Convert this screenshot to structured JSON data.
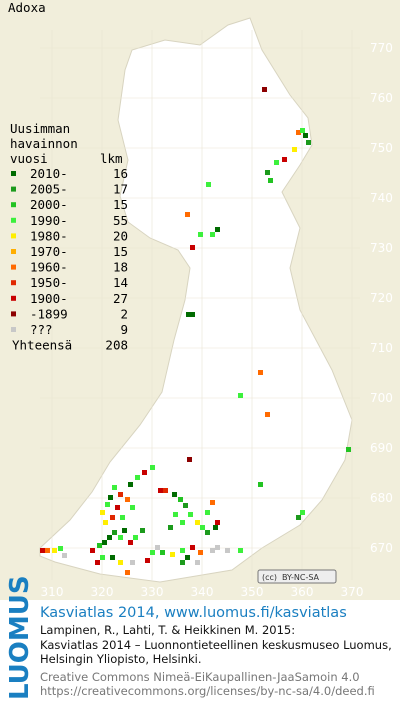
{
  "title": "Adoxa",
  "grid": {
    "y_labels": [
      "770",
      "760",
      "750",
      "740",
      "730",
      "720",
      "710",
      "700",
      "690",
      "680",
      "670"
    ],
    "x_labels": [
      "310",
      "320",
      "330",
      "340",
      "350",
      "360",
      "370"
    ]
  },
  "legend": {
    "heading": [
      "Uusimman",
      "havainnon",
      "vuosi",
      "lkm"
    ],
    "rows": [
      {
        "period": "2010-",
        "count": 16,
        "color": "#006b00"
      },
      {
        "period": "2005-",
        "count": 17,
        "color": "#1c9a1c"
      },
      {
        "period": "2000-",
        "count": 15,
        "color": "#22c322"
      },
      {
        "period": "1990-",
        "count": 55,
        "color": "#3cf03c"
      },
      {
        "period": "1980-",
        "count": 20,
        "color": "#ffee00"
      },
      {
        "period": "1970-",
        "count": 15,
        "color": "#ffae00"
      },
      {
        "period": "1960-",
        "count": 18,
        "color": "#ff6a00"
      },
      {
        "period": "1950-",
        "count": 14,
        "color": "#e02800"
      },
      {
        "period": "1900-",
        "count": 27,
        "color": "#c80000"
      },
      {
        "period": "-1899",
        "count": 2,
        "color": "#8c0000"
      },
      {
        "period": "???",
        "count": 9,
        "color": "#c8c8c8"
      }
    ],
    "total": {
      "label": "Yhteensä",
      "count": 208
    }
  },
  "badge": "BY-NC-SA",
  "footer": {
    "logo": "LUOMUS",
    "heading": "Kasviatlas 2014, www.luomus.fi/kasviatlas",
    "citation": [
      "Lampinen, R., Lahti, T. & Heikkinen M. 2015:",
      "Kasviatlas 2014 – Luonnontieteellinen keskusmuseo Luomus,",
      "Helsingin Yliopisto, Helsinki."
    ],
    "license": [
      "Creative Commons Nimeä-EiKaupallinen-JaaSamoin 4.0",
      "https://creativecommons.org/licenses/by-nc-sa/4.0/deed.fi"
    ]
  }
}
